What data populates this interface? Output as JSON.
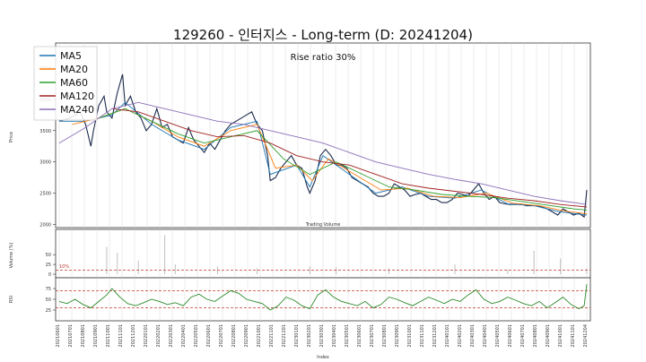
{
  "chart_data": {
    "title": "129260 - 인터지스 - Long-term (D: 20241204)",
    "annotation": "Rise ratio 30%",
    "type": "line",
    "price_panel": {
      "ylabel": "Price",
      "yticks": [
        2000,
        2500,
        3000,
        3500,
        4000,
        4500
      ],
      "ylim": [
        1950,
        4900
      ],
      "legend_position": "top-left",
      "series": [
        {
          "name": "MA5",
          "color": "#1f77b4"
        },
        {
          "name": "MA20",
          "color": "#ff7f0e"
        },
        {
          "name": "MA60",
          "color": "#2ca02c"
        },
        {
          "name": "MA120",
          "color": "#a02020"
        },
        {
          "name": "MA240",
          "color": "#8b6fb8"
        }
      ],
      "price_path": [
        [
          0,
          3650
        ],
        [
          4,
          3700
        ],
        [
          8,
          3800
        ],
        [
          10,
          3600
        ],
        [
          12,
          3250
        ],
        [
          13,
          3500
        ],
        [
          15,
          3900
        ],
        [
          17,
          4050
        ],
        [
          18,
          3800
        ],
        [
          20,
          3700
        ],
        [
          22,
          4100
        ],
        [
          24,
          4400
        ],
        [
          25,
          3900
        ],
        [
          27,
          4050
        ],
        [
          29,
          3800
        ],
        [
          31,
          3700
        ],
        [
          33,
          3500
        ],
        [
          35,
          3600
        ],
        [
          37,
          3850
        ],
        [
          39,
          3550
        ],
        [
          41,
          3600
        ],
        [
          43,
          3400
        ],
        [
          45,
          3350
        ],
        [
          47,
          3300
        ],
        [
          49,
          3550
        ],
        [
          51,
          3350
        ],
        [
          53,
          3250
        ],
        [
          55,
          3150
        ],
        [
          57,
          3300
        ],
        [
          59,
          3200
        ],
        [
          61,
          3350
        ],
        [
          63,
          3500
        ],
        [
          65,
          3600
        ],
        [
          67,
          3650
        ],
        [
          69,
          3700
        ],
        [
          71,
          3750
        ],
        [
          73,
          3800
        ],
        [
          75,
          3600
        ],
        [
          77,
          3500
        ],
        [
          79,
          3100
        ],
        [
          80,
          2700
        ],
        [
          82,
          2750
        ],
        [
          84,
          2900
        ],
        [
          86,
          3000
        ],
        [
          88,
          3100
        ],
        [
          90,
          2950
        ],
        [
          92,
          2900
        ],
        [
          94,
          2600
        ],
        [
          95,
          2500
        ],
        [
          97,
          2700
        ],
        [
          99,
          3100
        ],
        [
          101,
          3200
        ],
        [
          103,
          3100
        ],
        [
          105,
          2950
        ],
        [
          107,
          2950
        ],
        [
          109,
          2900
        ],
        [
          111,
          2750
        ],
        [
          113,
          2700
        ],
        [
          115,
          2650
        ],
        [
          117,
          2600
        ],
        [
          119,
          2500
        ],
        [
          121,
          2450
        ],
        [
          123,
          2450
        ],
        [
          125,
          2500
        ],
        [
          127,
          2650
        ],
        [
          129,
          2600
        ],
        [
          131,
          2550
        ],
        [
          133,
          2450
        ],
        [
          135,
          2480
        ],
        [
          137,
          2500
        ],
        [
          139,
          2450
        ],
        [
          141,
          2400
        ],
        [
          143,
          2400
        ],
        [
          145,
          2350
        ],
        [
          147,
          2350
        ],
        [
          149,
          2400
        ],
        [
          151,
          2500
        ],
        [
          153,
          2480
        ],
        [
          155,
          2450
        ],
        [
          157,
          2550
        ],
        [
          159,
          2650
        ],
        [
          161,
          2500
        ],
        [
          163,
          2400
        ],
        [
          165,
          2450
        ],
        [
          167,
          2350
        ],
        [
          169,
          2330
        ],
        [
          171,
          2320
        ],
        [
          173,
          2320
        ],
        [
          175,
          2330
        ],
        [
          177,
          2300
        ],
        [
          179,
          2300
        ],
        [
          181,
          2300
        ],
        [
          183,
          2280
        ],
        [
          185,
          2250
        ],
        [
          187,
          2200
        ],
        [
          189,
          2150
        ],
        [
          191,
          2250
        ],
        [
          193,
          2200
        ],
        [
          195,
          2150
        ],
        [
          197,
          2180
        ],
        [
          199,
          2120
        ],
        [
          200,
          2550
        ]
      ],
      "ma_paths": {
        "MA5": [
          [
            0,
            3650
          ],
          [
            10,
            3650
          ],
          [
            20,
            3750
          ],
          [
            25,
            3950
          ],
          [
            35,
            3600
          ],
          [
            45,
            3350
          ],
          [
            55,
            3200
          ],
          [
            65,
            3550
          ],
          [
            75,
            3650
          ],
          [
            80,
            2800
          ],
          [
            90,
            2950
          ],
          [
            95,
            2600
          ],
          [
            100,
            3100
          ],
          [
            110,
            2800
          ],
          [
            120,
            2500
          ],
          [
            130,
            2600
          ],
          [
            140,
            2450
          ],
          [
            150,
            2420
          ],
          [
            160,
            2550
          ],
          [
            170,
            2330
          ],
          [
            180,
            2300
          ],
          [
            190,
            2200
          ],
          [
            200,
            2150
          ]
        ],
        "MA20": [
          [
            5,
            3600
          ],
          [
            15,
            3700
          ],
          [
            25,
            3850
          ],
          [
            35,
            3650
          ],
          [
            45,
            3400
          ],
          [
            55,
            3250
          ],
          [
            65,
            3500
          ],
          [
            75,
            3600
          ],
          [
            82,
            2900
          ],
          [
            90,
            2950
          ],
          [
            96,
            2700
          ],
          [
            102,
            3050
          ],
          [
            112,
            2800
          ],
          [
            122,
            2550
          ],
          [
            132,
            2580
          ],
          [
            142,
            2450
          ],
          [
            152,
            2430
          ],
          [
            162,
            2500
          ],
          [
            172,
            2340
          ],
          [
            182,
            2300
          ],
          [
            192,
            2210
          ],
          [
            200,
            2170
          ]
        ],
        "MA60": [
          [
            15,
            3700
          ],
          [
            25,
            3850
          ],
          [
            35,
            3650
          ],
          [
            45,
            3450
          ],
          [
            55,
            3300
          ],
          [
            65,
            3400
          ],
          [
            75,
            3500
          ],
          [
            85,
            3050
          ],
          [
            95,
            2800
          ],
          [
            105,
            3000
          ],
          [
            115,
            2800
          ],
          [
            125,
            2600
          ],
          [
            135,
            2550
          ],
          [
            145,
            2480
          ],
          [
            155,
            2450
          ],
          [
            165,
            2430
          ],
          [
            175,
            2370
          ],
          [
            185,
            2310
          ],
          [
            195,
            2250
          ],
          [
            200,
            2230
          ]
        ],
        "MA120": [
          [
            20,
            3850
          ],
          [
            30,
            3800
          ],
          [
            40,
            3650
          ],
          [
            50,
            3500
          ],
          [
            60,
            3400
          ],
          [
            70,
            3420
          ],
          [
            80,
            3300
          ],
          [
            90,
            3100
          ],
          [
            100,
            3000
          ],
          [
            110,
            2950
          ],
          [
            120,
            2800
          ],
          [
            130,
            2650
          ],
          [
            140,
            2580
          ],
          [
            150,
            2530
          ],
          [
            160,
            2480
          ],
          [
            170,
            2420
          ],
          [
            180,
            2380
          ],
          [
            190,
            2320
          ],
          [
            200,
            2280
          ]
        ],
        "MA240": [
          [
            0,
            3300
          ],
          [
            10,
            3550
          ],
          [
            20,
            3850
          ],
          [
            30,
            3950
          ],
          [
            40,
            3850
          ],
          [
            50,
            3750
          ],
          [
            60,
            3650
          ],
          [
            70,
            3600
          ],
          [
            80,
            3500
          ],
          [
            90,
            3400
          ],
          [
            100,
            3300
          ],
          [
            110,
            3150
          ],
          [
            120,
            3000
          ],
          [
            130,
            2900
          ],
          [
            140,
            2800
          ],
          [
            150,
            2720
          ],
          [
            160,
            2650
          ],
          [
            170,
            2550
          ],
          [
            180,
            2450
          ],
          [
            190,
            2380
          ],
          [
            200,
            2320
          ]
        ]
      }
    },
    "volume_panel": {
      "title": "Trading Volume",
      "ylabel": "Volume (%)",
      "yticks": [
        0,
        25,
        50
      ],
      "threshold_label": "10%",
      "threshold_value": 10,
      "color": "#c0c0c0",
      "spikes": [
        [
          18,
          70
        ],
        [
          22,
          55
        ],
        [
          30,
          35
        ],
        [
          40,
          100
        ],
        [
          44,
          25
        ],
        [
          60,
          20
        ],
        [
          75,
          15
        ],
        [
          95,
          20
        ],
        [
          105,
          18
        ],
        [
          125,
          15
        ],
        [
          150,
          25
        ],
        [
          170,
          12
        ],
        [
          180,
          60
        ],
        [
          190,
          40
        ],
        [
          200,
          15
        ]
      ]
    },
    "rsi_panel": {
      "ylabel": "RSI",
      "yticks": [
        25,
        50,
        75
      ],
      "upper": 70,
      "lower": 30,
      "color": "#2a8a2a",
      "path": [
        [
          0,
          45
        ],
        [
          3,
          40
        ],
        [
          6,
          50
        ],
        [
          9,
          38
        ],
        [
          12,
          30
        ],
        [
          15,
          45
        ],
        [
          18,
          60
        ],
        [
          20,
          75
        ],
        [
          23,
          55
        ],
        [
          26,
          40
        ],
        [
          29,
          35
        ],
        [
          32,
          42
        ],
        [
          35,
          50
        ],
        [
          38,
          45
        ],
        [
          41,
          38
        ],
        [
          44,
          42
        ],
        [
          47,
          35
        ],
        [
          50,
          55
        ],
        [
          53,
          62
        ],
        [
          56,
          50
        ],
        [
          59,
          45
        ],
        [
          62,
          58
        ],
        [
          65,
          70
        ],
        [
          68,
          64
        ],
        [
          71,
          50
        ],
        [
          74,
          45
        ],
        [
          77,
          40
        ],
        [
          80,
          25
        ],
        [
          83,
          35
        ],
        [
          86,
          55
        ],
        [
          89,
          48
        ],
        [
          92,
          35
        ],
        [
          95,
          28
        ],
        [
          98,
          60
        ],
        [
          101,
          72
        ],
        [
          104,
          55
        ],
        [
          107,
          45
        ],
        [
          110,
          40
        ],
        [
          113,
          35
        ],
        [
          116,
          45
        ],
        [
          119,
          30
        ],
        [
          122,
          38
        ],
        [
          125,
          55
        ],
        [
          128,
          50
        ],
        [
          131,
          42
        ],
        [
          134,
          35
        ],
        [
          137,
          45
        ],
        [
          140,
          55
        ],
        [
          143,
          48
        ],
        [
          146,
          40
        ],
        [
          149,
          50
        ],
        [
          152,
          45
        ],
        [
          155,
          60
        ],
        [
          158,
          72
        ],
        [
          161,
          50
        ],
        [
          164,
          40
        ],
        [
          167,
          45
        ],
        [
          170,
          55
        ],
        [
          173,
          48
        ],
        [
          176,
          40
        ],
        [
          179,
          35
        ],
        [
          182,
          45
        ],
        [
          185,
          30
        ],
        [
          188,
          42
        ],
        [
          191,
          55
        ],
        [
          194,
          38
        ],
        [
          197,
          28
        ],
        [
          199,
          35
        ],
        [
          200,
          85
        ]
      ]
    },
    "x_axis": {
      "xlabel": "Index",
      "tick_labels": [
        "20210601",
        "20210701",
        "20210801",
        "20210901",
        "20211001",
        "20211101",
        "20211201",
        "20220101",
        "20220201",
        "20220301",
        "20220401",
        "20220501",
        "20220601",
        "20220701",
        "20220801",
        "20220901",
        "20221001",
        "20221101",
        "20221201",
        "20230101",
        "20230201",
        "20230301",
        "20230401",
        "20230501",
        "20230601",
        "20230701",
        "20230801",
        "20230901",
        "20231001",
        "20231101",
        "20231201",
        "20240101",
        "20240201",
        "20240301",
        "20240401",
        "20240501",
        "20240601",
        "20240701",
        "20240801",
        "20240901",
        "20241001",
        "20241101",
        "20241204"
      ]
    }
  }
}
